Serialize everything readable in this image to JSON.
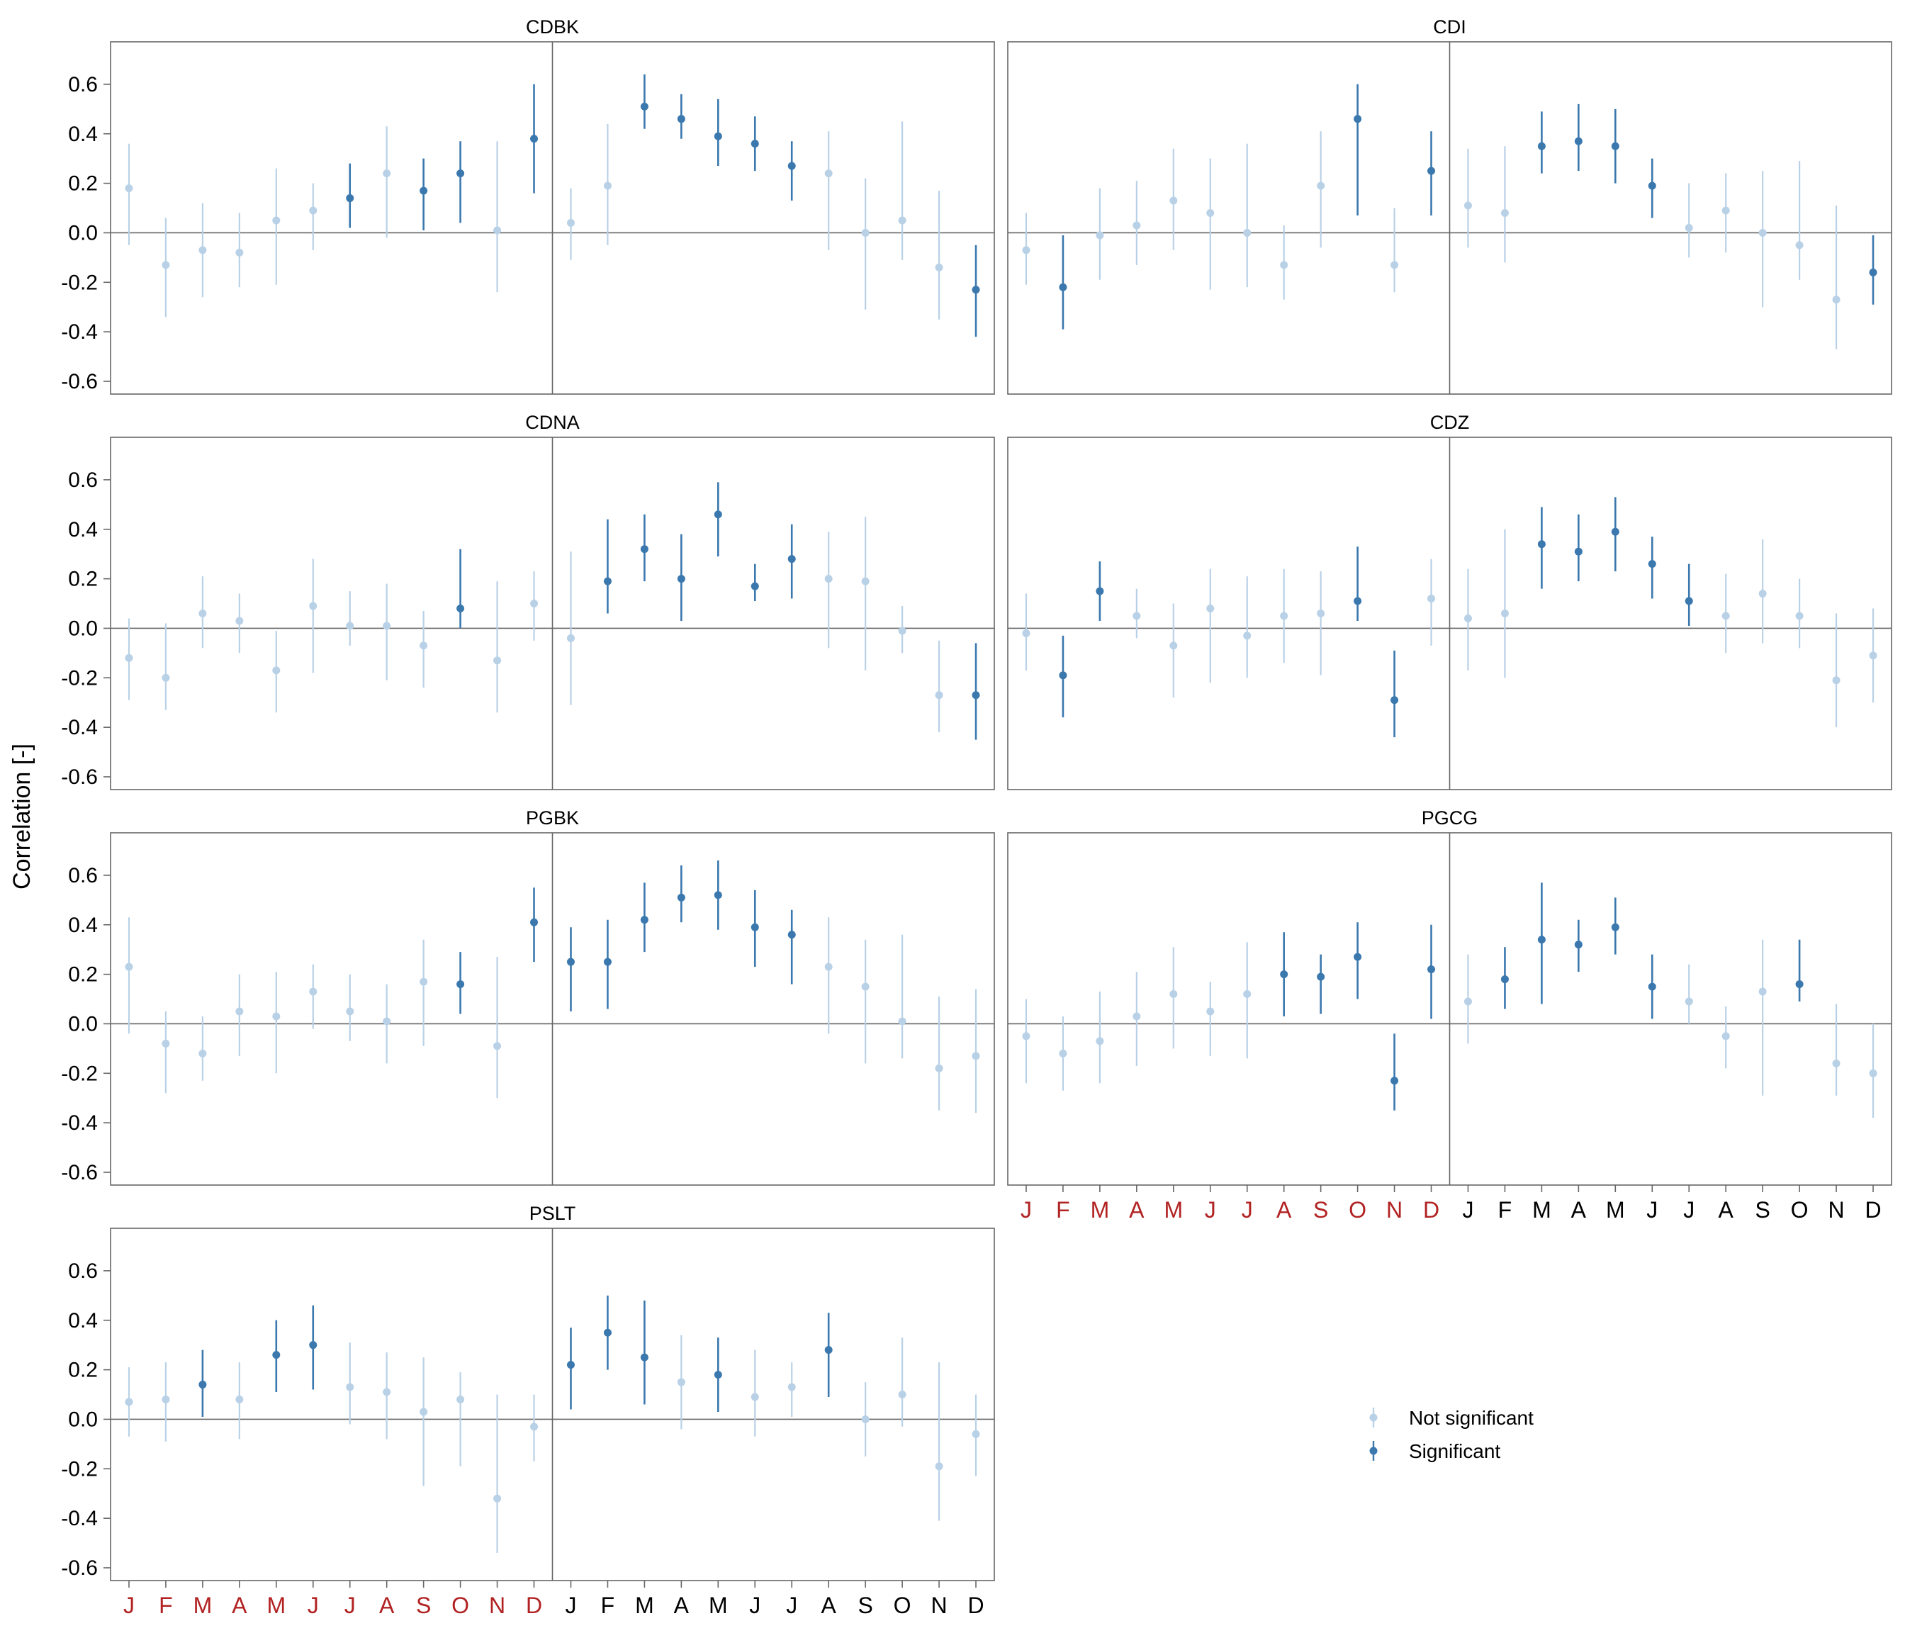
{
  "chart_data": {
    "type": "scatter",
    "ylabel": "Correlation [-]",
    "ylim": [
      -0.6,
      0.72
    ],
    "yticks": [
      -0.6,
      -0.4,
      -0.2,
      0.0,
      0.2,
      0.4,
      0.6
    ],
    "ytick_labels": [
      "-0.6",
      "-0.4",
      "-0.2",
      "0.0",
      "0.2",
      "0.4",
      "0.6"
    ],
    "months": [
      "J",
      "F",
      "M",
      "A",
      "M",
      "J",
      "J",
      "A",
      "S",
      "O",
      "N",
      "D",
      "J",
      "F",
      "M",
      "A",
      "M",
      "J",
      "J",
      "A",
      "S",
      "O",
      "N",
      "D"
    ],
    "month_colors": [
      "#b22222",
      "#b22222",
      "#b22222",
      "#b22222",
      "#b22222",
      "#b22222",
      "#b22222",
      "#b22222",
      "#b22222",
      "#b22222",
      "#b22222",
      "#b22222",
      "#000000",
      "#000000",
      "#000000",
      "#000000",
      "#000000",
      "#000000",
      "#000000",
      "#000000",
      "#000000",
      "#000000",
      "#000000",
      "#000000"
    ],
    "colors": {
      "significant": "#3a78ae",
      "not_significant": "#b9d1e6"
    },
    "legend": {
      "placement": "bottom-right",
      "entries": [
        "Not significant",
        "Significant"
      ]
    },
    "panels": [
      {
        "title": "CDBK",
        "values": [
          0.18,
          -0.13,
          -0.07,
          -0.08,
          0.05,
          0.09,
          0.14,
          0.24,
          0.17,
          0.24,
          0.01,
          0.38,
          0.04,
          0.19,
          0.51,
          0.46,
          0.39,
          0.36,
          0.27,
          0.24,
          0.0,
          0.05,
          -0.14,
          -0.23
        ],
        "lower": [
          -0.05,
          -0.34,
          -0.26,
          -0.22,
          -0.21,
          -0.07,
          0.02,
          -0.02,
          0.01,
          0.04,
          -0.24,
          0.16,
          -0.11,
          -0.05,
          0.42,
          0.38,
          0.27,
          0.25,
          0.13,
          -0.07,
          -0.31,
          -0.11,
          -0.35,
          -0.42
        ],
        "upper": [
          0.36,
          0.06,
          0.12,
          0.08,
          0.26,
          0.2,
          0.28,
          0.43,
          0.3,
          0.37,
          0.37,
          0.6,
          0.18,
          0.44,
          0.64,
          0.56,
          0.54,
          0.47,
          0.37,
          0.41,
          0.22,
          0.45,
          0.17,
          -0.05
        ],
        "significant": [
          false,
          false,
          false,
          false,
          false,
          false,
          true,
          false,
          true,
          true,
          false,
          true,
          false,
          false,
          true,
          true,
          true,
          true,
          true,
          false,
          false,
          false,
          false,
          true
        ]
      },
      {
        "title": "CDI",
        "values": [
          -0.07,
          -0.22,
          -0.01,
          0.03,
          0.13,
          0.08,
          0.0,
          -0.13,
          0.19,
          0.46,
          -0.13,
          0.25,
          0.11,
          0.08,
          0.35,
          0.37,
          0.35,
          0.19,
          0.02,
          0.09,
          0.0,
          -0.05,
          -0.27,
          -0.16
        ],
        "lower": [
          -0.21,
          -0.39,
          -0.19,
          -0.13,
          -0.07,
          -0.23,
          -0.22,
          -0.27,
          -0.06,
          0.07,
          -0.24,
          0.07,
          -0.06,
          -0.12,
          0.24,
          0.25,
          0.2,
          0.06,
          -0.1,
          -0.08,
          -0.3,
          -0.19,
          -0.47,
          -0.29
        ],
        "upper": [
          0.08,
          -0.01,
          0.18,
          0.21,
          0.34,
          0.3,
          0.36,
          0.03,
          0.41,
          0.6,
          0.1,
          0.41,
          0.34,
          0.35,
          0.49,
          0.52,
          0.5,
          0.3,
          0.2,
          0.24,
          0.25,
          0.29,
          0.11,
          -0.01
        ],
        "significant": [
          false,
          true,
          false,
          false,
          false,
          false,
          false,
          false,
          false,
          true,
          false,
          true,
          false,
          false,
          true,
          true,
          true,
          true,
          false,
          false,
          false,
          false,
          false,
          true
        ]
      },
      {
        "title": "CDNA",
        "values": [
          -0.12,
          -0.2,
          0.06,
          0.03,
          -0.17,
          0.09,
          0.01,
          0.01,
          -0.07,
          0.08,
          -0.13,
          0.1,
          -0.04,
          0.19,
          0.32,
          0.2,
          0.46,
          0.17,
          0.28,
          0.2,
          0.19,
          -0.01,
          -0.27,
          -0.27
        ],
        "lower": [
          -0.29,
          -0.33,
          -0.08,
          -0.1,
          -0.34,
          -0.18,
          -0.07,
          -0.21,
          -0.24,
          0.0,
          -0.34,
          -0.05,
          -0.31,
          0.06,
          0.19,
          0.03,
          0.29,
          0.11,
          0.12,
          -0.08,
          -0.17,
          -0.1,
          -0.42,
          -0.45
        ],
        "upper": [
          0.04,
          0.02,
          0.21,
          0.14,
          -0.01,
          0.28,
          0.15,
          0.18,
          0.07,
          0.32,
          0.19,
          0.23,
          0.31,
          0.44,
          0.46,
          0.38,
          0.59,
          0.26,
          0.42,
          0.39,
          0.45,
          0.09,
          -0.05,
          -0.06
        ],
        "significant": [
          false,
          false,
          false,
          false,
          false,
          false,
          false,
          false,
          false,
          true,
          false,
          false,
          false,
          true,
          true,
          true,
          true,
          true,
          true,
          false,
          false,
          false,
          false,
          true
        ]
      },
      {
        "title": "CDZ",
        "values": [
          -0.02,
          -0.19,
          0.15,
          0.05,
          -0.07,
          0.08,
          -0.03,
          0.05,
          0.06,
          0.11,
          -0.29,
          0.12,
          0.04,
          0.06,
          0.34,
          0.31,
          0.39,
          0.26,
          0.11,
          0.05,
          0.14,
          0.05,
          -0.21,
          -0.11
        ],
        "lower": [
          -0.17,
          -0.36,
          0.03,
          -0.04,
          -0.28,
          -0.22,
          -0.2,
          -0.14,
          -0.19,
          0.03,
          -0.44,
          -0.07,
          -0.17,
          -0.2,
          0.16,
          0.19,
          0.23,
          0.12,
          0.01,
          -0.1,
          -0.06,
          -0.08,
          -0.4,
          -0.3
        ],
        "upper": [
          0.14,
          -0.03,
          0.27,
          0.16,
          0.1,
          0.24,
          0.21,
          0.24,
          0.23,
          0.33,
          -0.09,
          0.28,
          0.24,
          0.4,
          0.49,
          0.46,
          0.53,
          0.37,
          0.26,
          0.22,
          0.36,
          0.2,
          0.06,
          0.08
        ],
        "significant": [
          false,
          true,
          true,
          false,
          false,
          false,
          false,
          false,
          false,
          true,
          true,
          false,
          false,
          false,
          true,
          true,
          true,
          true,
          true,
          false,
          false,
          false,
          false,
          false
        ]
      },
      {
        "title": "PGBK",
        "values": [
          0.23,
          -0.08,
          -0.12,
          0.05,
          0.03,
          0.13,
          0.05,
          0.01,
          0.17,
          0.16,
          -0.09,
          0.41,
          0.25,
          0.25,
          0.42,
          0.51,
          0.52,
          0.39,
          0.36,
          0.23,
          0.15,
          0.01,
          -0.18,
          -0.13
        ],
        "lower": [
          -0.04,
          -0.28,
          -0.23,
          -0.13,
          -0.2,
          -0.02,
          -0.07,
          -0.16,
          -0.09,
          0.04,
          -0.3,
          0.25,
          0.05,
          0.06,
          0.29,
          0.41,
          0.38,
          0.23,
          0.16,
          -0.04,
          -0.16,
          -0.14,
          -0.35,
          -0.36
        ],
        "upper": [
          0.43,
          0.05,
          0.03,
          0.2,
          0.21,
          0.24,
          0.2,
          0.16,
          0.34,
          0.29,
          0.27,
          0.55,
          0.39,
          0.42,
          0.57,
          0.64,
          0.66,
          0.54,
          0.46,
          0.43,
          0.34,
          0.36,
          0.11,
          0.14
        ],
        "significant": [
          false,
          false,
          false,
          false,
          false,
          false,
          false,
          false,
          false,
          true,
          false,
          true,
          true,
          true,
          true,
          true,
          true,
          true,
          true,
          false,
          false,
          false,
          false,
          false
        ]
      },
      {
        "title": "PGCG",
        "values": [
          -0.05,
          -0.12,
          -0.07,
          0.03,
          0.12,
          0.05,
          0.12,
          0.2,
          0.19,
          0.27,
          -0.23,
          0.22,
          0.09,
          0.18,
          0.34,
          0.32,
          0.39,
          0.15,
          0.09,
          -0.05,
          0.13,
          0.16,
          -0.16,
          -0.2
        ],
        "lower": [
          -0.24,
          -0.27,
          -0.24,
          -0.17,
          -0.1,
          -0.13,
          -0.14,
          0.03,
          0.04,
          0.1,
          -0.35,
          0.02,
          -0.08,
          0.06,
          0.08,
          0.21,
          0.28,
          0.02,
          0.0,
          -0.18,
          -0.29,
          0.09,
          -0.29,
          -0.38
        ],
        "upper": [
          0.1,
          0.03,
          0.13,
          0.21,
          0.31,
          0.17,
          0.33,
          0.37,
          0.28,
          0.41,
          -0.04,
          0.4,
          0.28,
          0.31,
          0.57,
          0.42,
          0.51,
          0.28,
          0.24,
          0.07,
          0.34,
          0.34,
          0.08,
          0.0
        ],
        "significant": [
          false,
          false,
          false,
          false,
          false,
          false,
          false,
          true,
          true,
          true,
          true,
          true,
          false,
          true,
          true,
          true,
          true,
          true,
          false,
          false,
          false,
          true,
          false,
          false
        ]
      },
      {
        "title": "PSLT",
        "values": [
          0.07,
          0.08,
          0.14,
          0.08,
          0.26,
          0.3,
          0.13,
          0.11,
          0.03,
          0.08,
          -0.32,
          -0.03,
          0.22,
          0.35,
          0.25,
          0.15,
          0.18,
          0.09,
          0.13,
          0.28,
          0.0,
          0.1,
          -0.19,
          -0.06
        ],
        "lower": [
          -0.07,
          -0.09,
          0.01,
          -0.08,
          0.11,
          0.12,
          -0.02,
          -0.08,
          -0.27,
          -0.19,
          -0.54,
          -0.17,
          0.04,
          0.2,
          0.06,
          -0.04,
          0.03,
          -0.07,
          0.01,
          0.09,
          -0.15,
          -0.03,
          -0.41,
          -0.23
        ],
        "upper": [
          0.21,
          0.23,
          0.28,
          0.23,
          0.4,
          0.46,
          0.31,
          0.27,
          0.25,
          0.19,
          0.1,
          0.1,
          0.37,
          0.5,
          0.48,
          0.34,
          0.33,
          0.28,
          0.23,
          0.43,
          0.15,
          0.33,
          0.23,
          0.1
        ],
        "significant": [
          false,
          false,
          true,
          false,
          true,
          true,
          false,
          false,
          false,
          false,
          false,
          false,
          true,
          true,
          true,
          false,
          true,
          false,
          false,
          true,
          false,
          false,
          false,
          false
        ]
      }
    ]
  }
}
